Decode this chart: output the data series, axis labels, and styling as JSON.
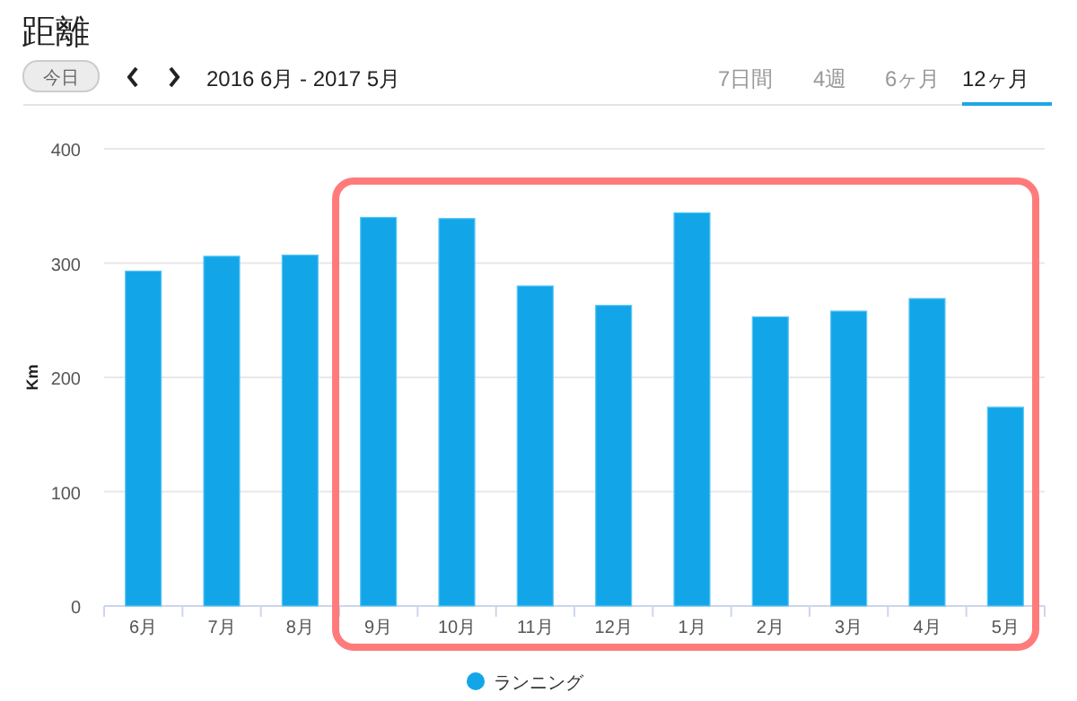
{
  "chart_data": {
    "type": "bar",
    "title": "距離",
    "subtitle": "2016 6月 - 2017 5月",
    "ylabel": "Km",
    "annotations": [
      "今日",
      "7日間",
      "4週",
      "6ヶ月",
      "12ヶ月"
    ],
    "categories": [
      "6月",
      "7月",
      "8月",
      "9月",
      "10月",
      "11月",
      "12月",
      "1月",
      "2月",
      "3月",
      "4月",
      "5月"
    ],
    "series": [
      {
        "name": "ランニング",
        "color": "#12a6e8",
        "values": [
          293,
          306,
          307,
          340,
          339,
          280,
          263,
          344,
          253,
          258,
          269,
          174
        ]
      }
    ],
    "ylim": [
      0,
      400
    ],
    "yticks": [
      0,
      100,
      200,
      300,
      400
    ],
    "grid": "y",
    "legend": "bottom"
  }
}
